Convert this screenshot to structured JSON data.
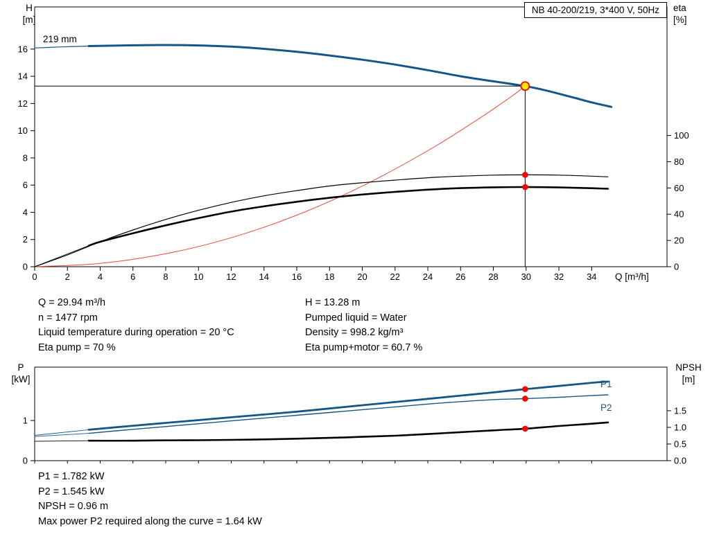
{
  "title_box": "NB 40-200/219, 3*400 V, 50Hz",
  "top_chart_labels": {
    "left1": "H",
    "left2": "[m]",
    "right1": "eta",
    "right2": "[%]",
    "curve": "219 mm"
  },
  "bottom_chart_labels": {
    "left1": "P",
    "left2": "[kW]",
    "right1": "NPSH",
    "right2": "[m]",
    "p1": "P1",
    "p2": "P2"
  },
  "info_left": [
    "Q = 29.94 m³/h",
    "n = 1477 rpm",
    "Liquid temperature during operation = 20 °C",
    "Eta pump = 70 %"
  ],
  "info_right": [
    "H = 13.28 m",
    "Pumped liquid = Water",
    "Density = 998.2 kg/m³",
    "Eta pump+motor = 60.7 %"
  ],
  "info_bottom": [
    "P1 = 1.782 kW",
    "P2 = 1.545 kW",
    "NPSH = 0.96 m",
    "Max power P2 required along the curve = 1.64 kW"
  ],
  "colors": {
    "curve_blue": "#15568a",
    "system_red": "#e8473f",
    "dot_red": "#ff0000",
    "duty_yellow": "#ffe600",
    "black": "#000000"
  },
  "chart_data": [
    {
      "type": "line",
      "name": "qh-chart",
      "title": "NB 40-200/219, 3*400 V, 50Hz",
      "x_axis": {
        "label": "Q [m³/h]",
        "min": 0,
        "max": 38.6,
        "show_labels": true,
        "ticks": [
          {
            "v": 0,
            "t": "0"
          },
          {
            "v": 2,
            "t": "2"
          },
          {
            "v": 4,
            "t": "4"
          },
          {
            "v": 6,
            "t": "6"
          },
          {
            "v": 8,
            "t": "8"
          },
          {
            "v": 10,
            "t": "10"
          },
          {
            "v": 12,
            "t": "12"
          },
          {
            "v": 14,
            "t": "14"
          },
          {
            "v": 16,
            "t": "16"
          },
          {
            "v": 18,
            "t": "18"
          },
          {
            "v": 20,
            "t": "20"
          },
          {
            "v": 22,
            "t": "22"
          },
          {
            "v": 24,
            "t": "24"
          },
          {
            "v": 26,
            "t": "26"
          },
          {
            "v": 28,
            "t": "28"
          },
          {
            "v": 30,
            "t": "30"
          },
          {
            "v": 32,
            "t": "32"
          },
          {
            "v": 34,
            "t": "34"
          }
        ]
      },
      "y_left": {
        "label": "H [m]",
        "min": 0,
        "max": 19.1,
        "ticks": [
          {
            "v": 0,
            "t": "0"
          },
          {
            "v": 2,
            "t": "2"
          },
          {
            "v": 4,
            "t": "4"
          },
          {
            "v": 6,
            "t": "6"
          },
          {
            "v": 8,
            "t": "8"
          },
          {
            "v": 10,
            "t": "10"
          },
          {
            "v": 12,
            "t": "12"
          },
          {
            "v": 14,
            "t": "14"
          },
          {
            "v": 16,
            "t": "16"
          }
        ]
      },
      "y_right": {
        "label": "eta [%]",
        "min": 0,
        "max": 198,
        "ticks": [
          {
            "v": 0,
            "t": "0"
          },
          {
            "v": 20,
            "t": "20"
          },
          {
            "v": 40,
            "t": "40"
          },
          {
            "v": 60,
            "t": "60"
          },
          {
            "v": 80,
            "t": "80"
          },
          {
            "v": 100,
            "t": "100"
          }
        ]
      },
      "series": [
        {
          "name": "system-curve",
          "axis": "left",
          "color": "#e8473f",
          "width": 1,
          "points": [
            [
              0,
              0
            ],
            [
              4,
              0.24
            ],
            [
              8,
              0.95
            ],
            [
              12,
              2.13
            ],
            [
              16,
              3.79
            ],
            [
              20,
              5.93
            ],
            [
              24,
              8.53
            ],
            [
              27,
              10.79
            ],
            [
              29,
              12.43
            ],
            [
              29.94,
              13.28
            ]
          ]
        },
        {
          "name": "eta-pump-curve",
          "axis": "right",
          "color": "#000000",
          "width": 1.2,
          "points": [
            [
              0,
              0
            ],
            [
              2,
              9
            ],
            [
              4,
              19
            ],
            [
              6,
              28
            ],
            [
              8,
              36
            ],
            [
              10,
              43
            ],
            [
              12,
              49
            ],
            [
              14,
              54
            ],
            [
              16,
              58
            ],
            [
              18,
              61.5
            ],
            [
              20,
              64
            ],
            [
              22,
              66
            ],
            [
              24,
              67.8
            ],
            [
              26,
              69
            ],
            [
              28,
              69.8
            ],
            [
              30,
              70
            ],
            [
              32,
              69.8
            ],
            [
              34,
              69
            ],
            [
              35,
              68.5
            ]
          ]
        },
        {
          "name": "eta-pump-motor-lead",
          "axis": "right",
          "color": "#000000",
          "width": 0.9,
          "points": [
            [
              0,
              0
            ],
            [
              3.3,
              16
            ]
          ]
        },
        {
          "name": "eta-pump-motor-curve",
          "axis": "right",
          "color": "#000000",
          "width": 2.6,
          "points": [
            [
              3.3,
              16
            ],
            [
              4,
              19
            ],
            [
              6,
              25.5
            ],
            [
              8,
              31.5
            ],
            [
              10,
              37
            ],
            [
              12,
              42
            ],
            [
              14,
              46
            ],
            [
              16,
              49.5
            ],
            [
              18,
              52.5
            ],
            [
              20,
              55
            ],
            [
              22,
              57
            ],
            [
              24,
              58.7
            ],
            [
              26,
              59.9
            ],
            [
              28,
              60.5
            ],
            [
              30,
              60.7
            ],
            [
              32,
              60.4
            ],
            [
              34,
              59.8
            ],
            [
              35,
              59.4
            ]
          ]
        },
        {
          "name": "pump-curve-lead",
          "axis": "left",
          "color": "#15568a",
          "width": 1.2,
          "points": [
            [
              0,
              16.08
            ],
            [
              1.6,
              16.16
            ],
            [
              3.3,
              16.22
            ]
          ]
        },
        {
          "name": "pump-curve-219mm",
          "axis": "left",
          "color": "#15568a",
          "width": 3,
          "points": [
            [
              3.3,
              16.22
            ],
            [
              6,
              16.28
            ],
            [
              8,
              16.3
            ],
            [
              10,
              16.27
            ],
            [
              12,
              16.18
            ],
            [
              14,
              16.02
            ],
            [
              16,
              15.8
            ],
            [
              18,
              15.53
            ],
            [
              20,
              15.22
            ],
            [
              22,
              14.86
            ],
            [
              24,
              14.45
            ],
            [
              26,
              14.0
            ],
            [
              28,
              13.63
            ],
            [
              29.94,
              13.28
            ],
            [
              31,
              13.02
            ],
            [
              32,
              12.72
            ],
            [
              33,
              12.4
            ],
            [
              34,
              12.08
            ],
            [
              35.2,
              11.75
            ]
          ]
        }
      ],
      "crosshair": {
        "q": 29.94,
        "v": 13.28
      },
      "markers": [
        {
          "name": "duty-point-marker",
          "q": 29.94,
          "v": 13.28,
          "axis": "left",
          "style": "duty"
        },
        {
          "name": "eta-pump-dot",
          "q": 29.94,
          "v": 70,
          "axis": "right",
          "style": "dot"
        },
        {
          "name": "eta-pump-motor-dot",
          "q": 29.94,
          "v": 60.7,
          "axis": "right",
          "style": "dot"
        }
      ],
      "duty_point": {
        "q": 29.94,
        "h": 13.28,
        "eta_pump": 70,
        "eta_pump_motor": 60.7
      }
    },
    {
      "type": "line",
      "name": "power-npsh-chart",
      "x_axis": {
        "label": "",
        "min": 0,
        "max": 38.6,
        "show_labels": false,
        "ticks": [
          {
            "v": 0
          },
          {
            "v": 2
          },
          {
            "v": 4
          },
          {
            "v": 6
          },
          {
            "v": 8
          },
          {
            "v": 10
          },
          {
            "v": 12
          },
          {
            "v": 14
          },
          {
            "v": 16
          },
          {
            "v": 18
          },
          {
            "v": 20
          },
          {
            "v": 22
          },
          {
            "v": 24
          },
          {
            "v": 26
          },
          {
            "v": 28
          },
          {
            "v": 30
          },
          {
            "v": 32
          },
          {
            "v": 34
          }
        ]
      },
      "y_left": {
        "label": "P [kW]",
        "min": 0,
        "max": 2.33,
        "ticks": [
          {
            "v": 0,
            "t": "0"
          },
          {
            "v": 1,
            "t": "1"
          }
        ]
      },
      "y_right": {
        "label": "NPSH [m]",
        "min": 0,
        "max": 2.81,
        "ticks": [
          {
            "v": 0,
            "t": "0.0"
          },
          {
            "v": 0.5,
            "t": "0.5"
          },
          {
            "v": 1,
            "t": "1.0"
          },
          {
            "v": 1.5,
            "t": "1.5"
          }
        ]
      },
      "series": [
        {
          "name": "p1-lead",
          "axis": "left",
          "color": "#15568a",
          "width": 0.9,
          "points": [
            [
              0,
              0.63
            ],
            [
              3.3,
              0.77
            ]
          ]
        },
        {
          "name": "p1-curve",
          "axis": "left",
          "color": "#15568a",
          "width": 2.8,
          "points": [
            [
              3.3,
              0.77
            ],
            [
              6,
              0.87
            ],
            [
              8,
              0.94
            ],
            [
              10,
              1.01
            ],
            [
              12,
              1.08
            ],
            [
              14,
              1.15
            ],
            [
              16,
              1.22
            ],
            [
              18,
              1.3
            ],
            [
              20,
              1.38
            ],
            [
              22,
              1.46
            ],
            [
              24,
              1.54
            ],
            [
              26,
              1.62
            ],
            [
              28,
              1.7
            ],
            [
              29.94,
              1.782
            ],
            [
              32,
              1.86
            ],
            [
              34,
              1.94
            ],
            [
              35,
              1.97
            ]
          ]
        },
        {
          "name": "p2-lead",
          "axis": "left",
          "color": "#15568a",
          "width": 0.9,
          "points": [
            [
              0,
              0.6
            ],
            [
              3.3,
              0.68
            ]
          ]
        },
        {
          "name": "p2-curve",
          "axis": "left",
          "color": "#15568a",
          "width": 1.4,
          "points": [
            [
              3.3,
              0.68
            ],
            [
              6,
              0.78
            ],
            [
              8,
              0.85
            ],
            [
              10,
              0.92
            ],
            [
              12,
              0.99
            ],
            [
              14,
              1.06
            ],
            [
              16,
              1.13
            ],
            [
              18,
              1.2
            ],
            [
              20,
              1.27
            ],
            [
              22,
              1.34
            ],
            [
              24,
              1.41
            ],
            [
              26,
              1.47
            ],
            [
              28,
              1.52
            ],
            [
              29.94,
              1.545
            ],
            [
              32,
              1.58
            ],
            [
              34,
              1.62
            ],
            [
              35,
              1.64
            ]
          ]
        },
        {
          "name": "npsh-lead",
          "axis": "right",
          "color": "#000000",
          "width": 0.9,
          "points": [
            [
              0,
              0.58
            ],
            [
              3.3,
              0.6
            ]
          ]
        },
        {
          "name": "npsh-curve",
          "axis": "right",
          "color": "#000000",
          "width": 2.6,
          "points": [
            [
              3.3,
              0.6
            ],
            [
              6,
              0.6
            ],
            [
              8,
              0.61
            ],
            [
              10,
              0.615
            ],
            [
              12,
              0.625
            ],
            [
              14,
              0.64
            ],
            [
              16,
              0.66
            ],
            [
              18,
              0.685
            ],
            [
              20,
              0.715
            ],
            [
              22,
              0.75
            ],
            [
              24,
              0.8
            ],
            [
              26,
              0.855
            ],
            [
              28,
              0.91
            ],
            [
              29.94,
              0.96
            ],
            [
              32,
              1.04
            ],
            [
              34,
              1.11
            ],
            [
              35,
              1.15
            ]
          ]
        }
      ],
      "markers": [
        {
          "name": "p1-dot",
          "q": 29.94,
          "v": 1.782,
          "axis": "left",
          "style": "dot"
        },
        {
          "name": "p2-dot",
          "q": 29.94,
          "v": 1.545,
          "axis": "left",
          "style": "dot"
        },
        {
          "name": "npsh-dot",
          "q": 29.94,
          "v": 0.96,
          "axis": "right",
          "style": "dot"
        }
      ],
      "duty_point": {
        "q": 29.94,
        "p1_kw": 1.782,
        "p2_kw": 1.545,
        "npsh_m": 0.96,
        "max_p2_along_curve_kw": 1.64
      }
    }
  ]
}
